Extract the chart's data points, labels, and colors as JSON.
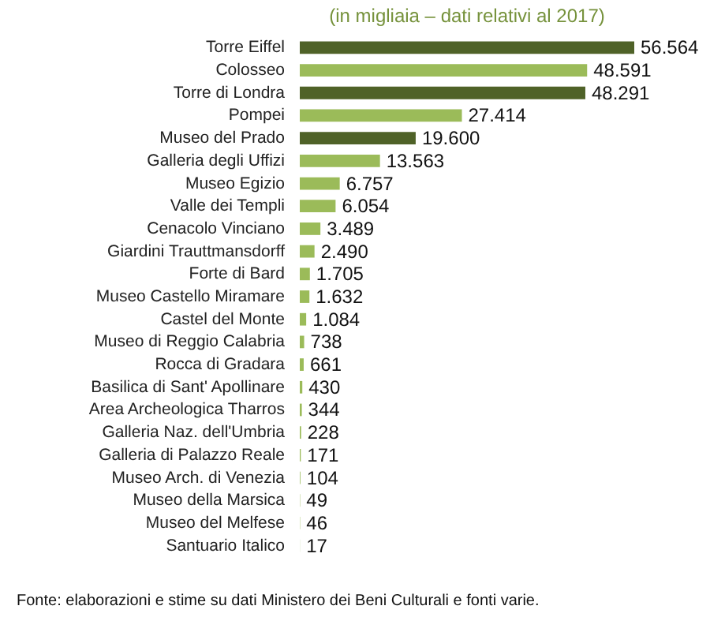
{
  "chart_data": {
    "type": "bar",
    "orientation": "horizontal",
    "title": "(in migliaia – dati relativi al 2017)",
    "categories": [
      "Torre Eiffel",
      "Colosseo",
      "Torre di Londra",
      "Pompei",
      "Museo del Prado",
      "Galleria degli Uffizi",
      "Museo Egizio",
      "Valle dei Templi",
      "Cenacolo Vinciano",
      "Giardini Trauttmansdorff",
      "Forte di Bard",
      "Museo Castello Miramare",
      "Castel del Monte",
      "Museo di Reggio Calabria",
      "Rocca di Gradara",
      "Basilica di Sant' Apollinare",
      "Area Archeologica Tharros",
      "Galleria Naz. dell'Umbria",
      "Galleria di Palazzo Reale",
      "Museo Arch. di Venezia",
      "Museo della Marsica",
      "Museo del Melfese",
      "Santuario Italico"
    ],
    "values": [
      56564,
      48591,
      48291,
      27414,
      19600,
      13563,
      6757,
      6054,
      3489,
      2490,
      1705,
      1632,
      1084,
      738,
      661,
      430,
      344,
      228,
      171,
      104,
      49,
      46,
      17
    ],
    "value_labels": [
      "56.564",
      "48.591",
      "48.291",
      "27.414",
      "19.600",
      "13.563",
      "6.757",
      "6.054",
      "3.489",
      "2.490",
      "1.705",
      "1.632",
      "1.084",
      "738",
      "661",
      "430",
      "344",
      "228",
      "171",
      "104",
      "49",
      "46",
      "17"
    ],
    "colors": [
      "#4f6228",
      "#9bbb59",
      "#4f6228",
      "#9bbb59",
      "#4f6228",
      "#9bbb59",
      "#9bbb59",
      "#9bbb59",
      "#9bbb59",
      "#9bbb59",
      "#9bbb59",
      "#9bbb59",
      "#9bbb59",
      "#9bbb59",
      "#9bbb59",
      "#9bbb59",
      "#9bbb59",
      "#9bbb59",
      "#9bbb59",
      "#9bbb59",
      "#9bbb59",
      "#9bbb59",
      "#9bbb59"
    ],
    "annotations": [
      "Fonte: elaborazioni e stime su dati Ministero dei Beni Culturali e fonti varie."
    ]
  }
}
